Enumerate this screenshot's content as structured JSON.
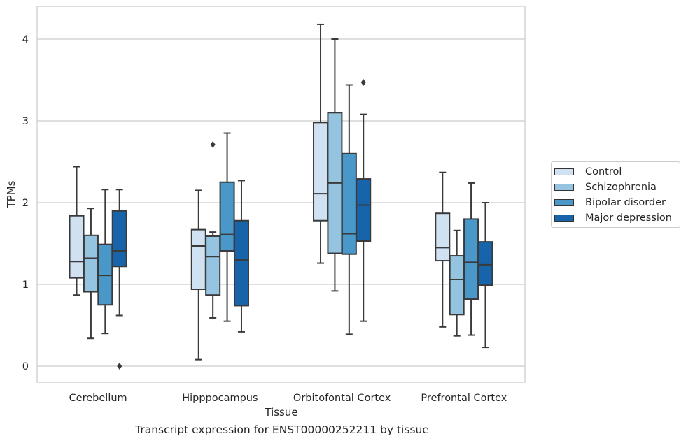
{
  "caption": "Transcript expression for ENST00000252211 by tissue",
  "colors": {
    "Control": "#d0e1f2",
    "Schizophrenia": "#94c4df",
    "Bipolar disorder": "#4a98c9",
    "Major depression": "#1764ab",
    "grid": "#cccccc",
    "line": "#3a3a3a"
  },
  "chart_data": {
    "type": "box",
    "xlabel": "Tissue",
    "ylabel": "TPMs",
    "ylim": [
      -0.2,
      4.4
    ],
    "yticks": [
      0,
      1,
      2,
      3,
      4
    ],
    "grid": "horizontal",
    "legend_position": "right",
    "categories": [
      "Cerebellum",
      "Hipppocampus",
      "Orbitofontal Cortex",
      "Prefrontal Cortex"
    ],
    "series": [
      {
        "name": "Control",
        "boxes": [
          {
            "whislo": 0.87,
            "q1": 1.08,
            "med": 1.28,
            "q3": 1.84,
            "whishi": 2.44,
            "fliers": []
          },
          {
            "whislo": 0.08,
            "q1": 0.94,
            "med": 1.47,
            "q3": 1.67,
            "whishi": 2.15,
            "fliers": []
          },
          {
            "whislo": 1.26,
            "q1": 1.78,
            "med": 2.11,
            "q3": 2.98,
            "whishi": 4.18,
            "fliers": []
          },
          {
            "whislo": 0.48,
            "q1": 1.29,
            "med": 1.45,
            "q3": 1.87,
            "whishi": 2.37,
            "fliers": []
          }
        ]
      },
      {
        "name": "Schizophrenia",
        "boxes": [
          {
            "whislo": 0.34,
            "q1": 0.91,
            "med": 1.32,
            "q3": 1.6,
            "whishi": 1.93,
            "fliers": []
          },
          {
            "whislo": 0.59,
            "q1": 0.87,
            "med": 1.34,
            "q3": 1.59,
            "whishi": 1.64,
            "fliers": [
              2.71
            ]
          },
          {
            "whislo": 0.92,
            "q1": 1.38,
            "med": 2.24,
            "q3": 3.1,
            "whishi": 4.0,
            "fliers": []
          },
          {
            "whislo": 0.37,
            "q1": 0.63,
            "med": 1.06,
            "q3": 1.35,
            "whishi": 1.66,
            "fliers": []
          }
        ]
      },
      {
        "name": "Bipolar disorder",
        "boxes": [
          {
            "whislo": 0.4,
            "q1": 0.75,
            "med": 1.11,
            "q3": 1.49,
            "whishi": 2.16,
            "fliers": []
          },
          {
            "whislo": 0.55,
            "q1": 1.41,
            "med": 1.61,
            "q3": 2.25,
            "whishi": 2.85,
            "fliers": []
          },
          {
            "whislo": 0.39,
            "q1": 1.37,
            "med": 1.62,
            "q3": 2.6,
            "whishi": 3.44,
            "fliers": []
          },
          {
            "whislo": 0.38,
            "q1": 0.82,
            "med": 1.27,
            "q3": 1.8,
            "whishi": 2.24,
            "fliers": []
          }
        ]
      },
      {
        "name": "Major depression",
        "boxes": [
          {
            "whislo": 0.62,
            "q1": 1.22,
            "med": 1.41,
            "q3": 1.9,
            "whishi": 2.16,
            "fliers": [
              0.0
            ]
          },
          {
            "whislo": 0.42,
            "q1": 0.74,
            "med": 1.3,
            "q3": 1.78,
            "whishi": 2.27,
            "fliers": []
          },
          {
            "whislo": 0.55,
            "q1": 1.53,
            "med": 1.97,
            "q3": 2.29,
            "whishi": 3.08,
            "fliers": [
              3.47
            ]
          },
          {
            "whislo": 0.23,
            "q1": 0.99,
            "med": 1.24,
            "q3": 1.52,
            "whishi": 2.0,
            "fliers": []
          }
        ]
      }
    ]
  }
}
